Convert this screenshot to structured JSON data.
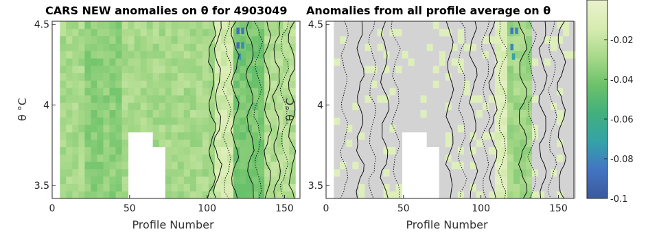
{
  "chart_data": [
    {
      "type": "heatmap",
      "title": "CARS NEW anomalies on θ for 4903049",
      "xlabel": "Profile Number",
      "ylabel": "θ °C",
      "xlim": [
        0,
        160
      ],
      "ylim": [
        3.42,
        4.52
      ],
      "xticks": [
        0,
        50,
        100,
        150
      ],
      "yticks": [
        3.5,
        4,
        4.5
      ],
      "missing_blocks": [
        {
          "x": [
            49,
            67
          ],
          "y": [
            3.42,
            3.81
          ]
        },
        {
          "x": [
            67,
            75
          ],
          "y": [
            3.42,
            3.75
          ]
        },
        {
          "x": [
            158,
            160
          ],
          "y": [
            3.42,
            4.52
          ]
        }
      ],
      "bands": [
        {
          "x": [
            5,
            105
          ],
          "value": -0.028
        },
        {
          "x": [
            20,
            45
          ],
          "value": -0.035
        },
        {
          "x": [
            105,
            115
          ],
          "value": -0.015
        },
        {
          "x": [
            115,
            135
          ],
          "value": -0.04
        },
        {
          "x": [
            135,
            158
          ],
          "value": -0.025
        }
      ],
      "hotspots": [
        {
          "x": 120,
          "y": 4.46,
          "value": -0.09
        },
        {
          "x": 123,
          "y": 4.46,
          "value": -0.085
        },
        {
          "x": 120,
          "y": 4.37,
          "value": -0.09
        },
        {
          "x": 123,
          "y": 4.37,
          "value": -0.08
        },
        {
          "x": 121,
          "y": 4.3,
          "value": -0.075
        }
      ],
      "contours": {
        "solid_and_dotted": true
      }
    },
    {
      "type": "heatmap",
      "title": "Anomalies from all profile average on θ",
      "xlabel": "Profile Number",
      "ylabel": "θ °C",
      "xlim": [
        0,
        160
      ],
      "ylim": [
        3.42,
        4.52
      ],
      "xticks": [
        0,
        50,
        100,
        150
      ],
      "yticks": [
        3.5,
        4,
        4.5
      ],
      "missing_blocks": [
        {
          "x": [
            49,
            67
          ],
          "y": [
            3.42,
            3.81
          ]
        },
        {
          "x": [
            67,
            75
          ],
          "y": [
            3.42,
            3.75
          ]
        }
      ],
      "bands": [
        {
          "x": [
            5,
            108
          ],
          "value": 0.0
        },
        {
          "x": [
            108,
            115
          ],
          "value": -0.01
        },
        {
          "x": [
            115,
            132
          ],
          "value": -0.03
        },
        {
          "x": [
            132,
            150
          ],
          "value": -0.005
        },
        {
          "x": [
            150,
            160
          ],
          "value": 0.002
        }
      ],
      "hotspots": [
        {
          "x": 120,
          "y": 4.46,
          "value": -0.085
        },
        {
          "x": 123,
          "y": 4.46,
          "value": -0.08
        },
        {
          "x": 120,
          "y": 4.36,
          "value": -0.08
        },
        {
          "x": 121,
          "y": 4.3,
          "value": -0.07
        }
      ],
      "contours": {
        "solid_and_dotted": true
      }
    }
  ],
  "colorbar": {
    "ticks": [
      -0.02,
      -0.04,
      -0.06,
      -0.08,
      -0.1
    ],
    "tick_labels": [
      "-0.02",
      "-0.04",
      "-0.06",
      "-0.08",
      "-0.1"
    ],
    "range": [
      -0.1,
      0.0
    ],
    "colors": [
      "#3b5a9a",
      "#4274c4",
      "#34a3a8",
      "#42b07c",
      "#6cc26a",
      "#a8d98a",
      "#d7ecb0",
      "#e9f2cc"
    ]
  },
  "colors": {
    "missing": "#ffffff",
    "neutral": "#d3d3d3",
    "axis": "#262626"
  }
}
